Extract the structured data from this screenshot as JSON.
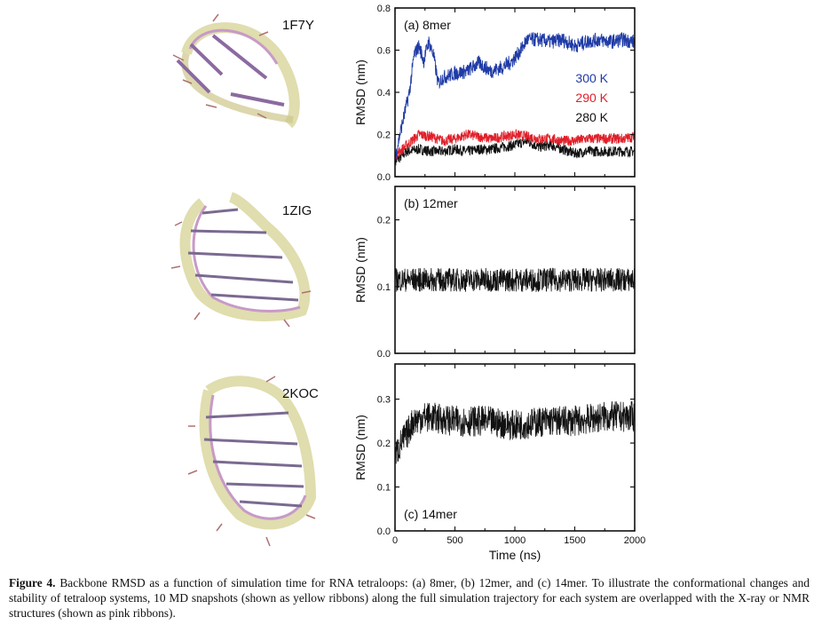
{
  "structures": [
    {
      "id": "1F7Y"
    },
    {
      "id": "1ZIG"
    },
    {
      "id": "2KOC"
    }
  ],
  "chart_data": [
    {
      "type": "line",
      "panel_label": "(a) 8mer",
      "xlabel": "",
      "ylabel": "RMSD (nm)",
      "xlim": [
        0,
        2000
      ],
      "ylim": [
        0,
        0.8
      ],
      "yticks": [
        "0.0",
        "0.2",
        "0.4",
        "0.6",
        "0.8"
      ],
      "series": [
        {
          "name": "300 K",
          "color": "#1f3ba6",
          "x": [
            0,
            40,
            80,
            120,
            160,
            200,
            240,
            280,
            320,
            360,
            400,
            450,
            500,
            600,
            700,
            800,
            900,
            980,
            1050,
            1100,
            1200,
            1300,
            1400,
            1500,
            1600,
            1700,
            1800,
            1900,
            2000
          ],
          "values": [
            0.08,
            0.2,
            0.3,
            0.4,
            0.58,
            0.62,
            0.55,
            0.64,
            0.58,
            0.44,
            0.47,
            0.48,
            0.49,
            0.5,
            0.54,
            0.5,
            0.52,
            0.55,
            0.6,
            0.65,
            0.65,
            0.64,
            0.65,
            0.62,
            0.64,
            0.65,
            0.64,
            0.65,
            0.64
          ]
        },
        {
          "name": "290 K",
          "color": "#e0202a",
          "x": [
            0,
            100,
            200,
            300,
            400,
            500,
            600,
            700,
            800,
            900,
            1000,
            1100,
            1200,
            1300,
            1400,
            1500,
            1600,
            1700,
            1800,
            1900,
            2000
          ],
          "values": [
            0.1,
            0.15,
            0.2,
            0.19,
            0.17,
            0.18,
            0.2,
            0.19,
            0.18,
            0.19,
            0.2,
            0.19,
            0.18,
            0.18,
            0.17,
            0.17,
            0.18,
            0.18,
            0.18,
            0.18,
            0.19
          ]
        },
        {
          "name": "280 K",
          "color": "#111111",
          "x": [
            0,
            100,
            200,
            300,
            400,
            500,
            600,
            700,
            800,
            900,
            1000,
            1100,
            1200,
            1300,
            1400,
            1500,
            1600,
            1700,
            1800,
            1900,
            2000
          ],
          "values": [
            0.07,
            0.12,
            0.13,
            0.12,
            0.12,
            0.13,
            0.12,
            0.13,
            0.13,
            0.14,
            0.15,
            0.17,
            0.14,
            0.15,
            0.13,
            0.11,
            0.12,
            0.12,
            0.12,
            0.12,
            0.12
          ]
        }
      ]
    },
    {
      "type": "line",
      "panel_label": "(b) 12mer",
      "xlabel": "",
      "ylabel": "RMSD (nm)",
      "xlim": [
        0,
        2000
      ],
      "ylim": [
        0,
        0.25
      ],
      "yticks": [
        "0.0",
        "0.1",
        "0.2"
      ],
      "series": [
        {
          "name": "",
          "color": "#111111",
          "x": [
            0,
            250,
            500,
            750,
            1000,
            1250,
            1500,
            1750,
            2000
          ],
          "values": [
            0.11,
            0.11,
            0.11,
            0.11,
            0.11,
            0.11,
            0.11,
            0.11,
            0.11
          ]
        }
      ]
    },
    {
      "type": "line",
      "panel_label": "(c) 14mer",
      "xlabel": "Time (ns)",
      "ylabel": "RMSD (nm)",
      "xlim": [
        0,
        2000
      ],
      "ylim": [
        0,
        0.38
      ],
      "yticks": [
        "0.0",
        "0.1",
        "0.2",
        "0.3"
      ],
      "xticks": [
        "0",
        "500",
        "1000",
        "1500",
        "2000"
      ],
      "series": [
        {
          "name": "",
          "color": "#111111",
          "x": [
            0,
            50,
            100,
            150,
            250,
            500,
            750,
            1000,
            1250,
            1500,
            1750,
            2000
          ],
          "values": [
            0.17,
            0.2,
            0.22,
            0.25,
            0.26,
            0.25,
            0.25,
            0.24,
            0.25,
            0.25,
            0.26,
            0.26
          ]
        }
      ]
    }
  ],
  "caption": {
    "label": "Figure 4.",
    "text": " Backbone RMSD as a function of simulation time for RNA tetraloops: (a) 8mer, (b) 12mer, and (c) 14mer. To illustrate the conformational changes and stability of tetraloop systems, 10 MD snapshots (shown as yellow ribbons) along the full simulation trajectory for each system are overlapped with the X-ray or NMR structures (shown as pink ribbons)."
  }
}
